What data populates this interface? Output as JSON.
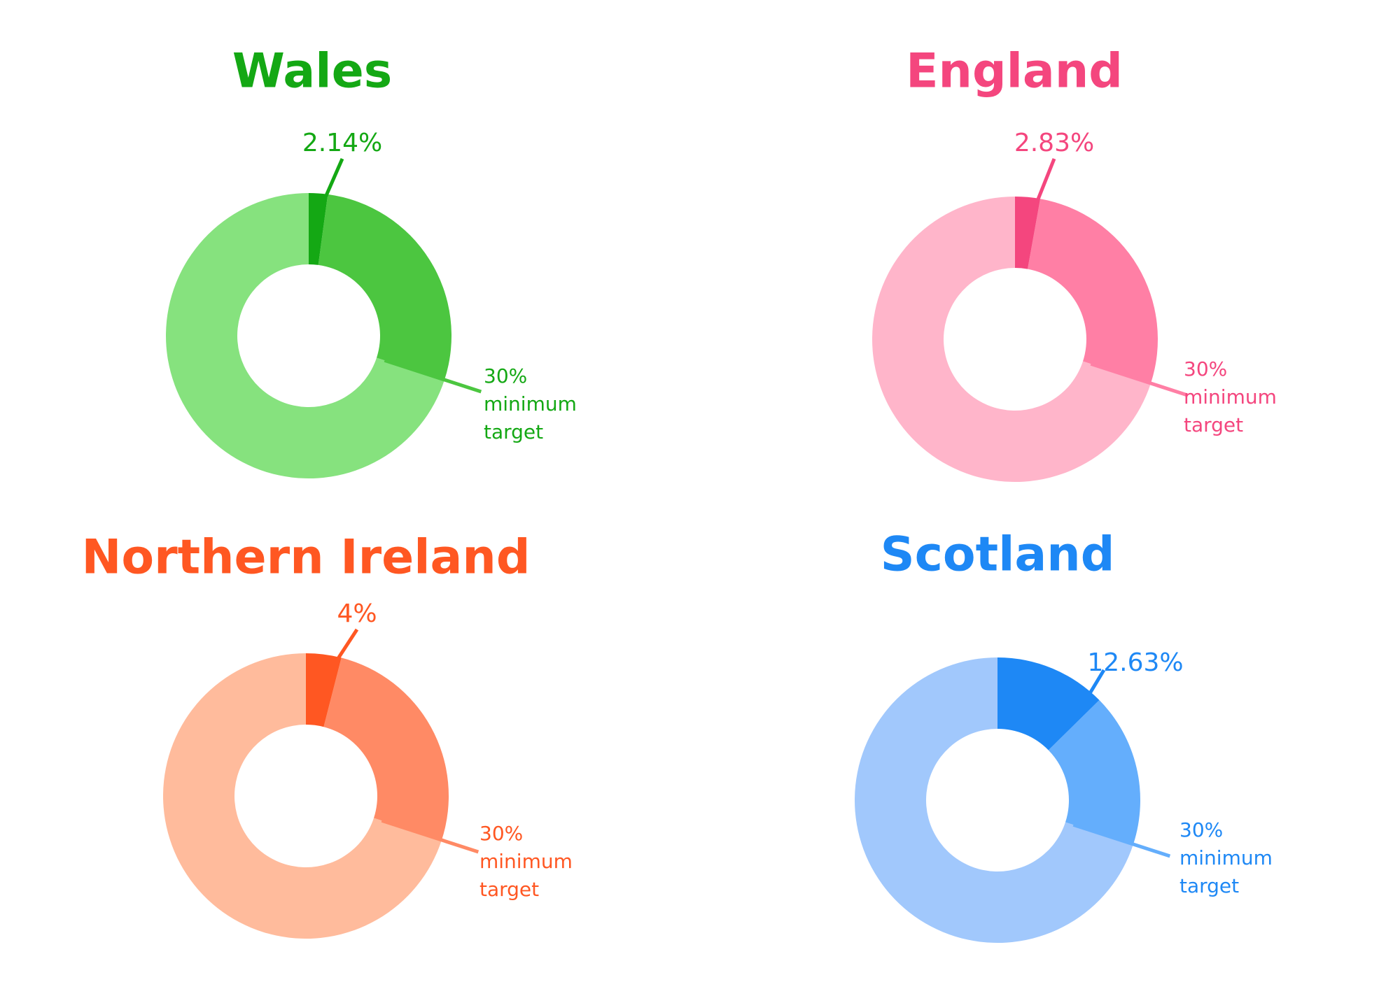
{
  "chart_data": [
    {
      "type": "donut",
      "title": "Wales",
      "values": [
        2.14,
        30
      ],
      "value_labels": [
        "2.14%",
        "30%"
      ],
      "annotation": "minimum target",
      "ylim": [
        0,
        100
      ],
      "colors": [
        "#14a814",
        "#4cc640",
        "#86e27e"
      ]
    },
    {
      "type": "donut",
      "title": "England",
      "values": [
        2.83,
        30
      ],
      "value_labels": [
        "2.83%",
        "30%"
      ],
      "annotation": "minimum target",
      "ylim": [
        0,
        100
      ],
      "colors": [
        "#f4467e",
        "#ff7fa5",
        "#ffb5ca"
      ]
    },
    {
      "type": "donut",
      "title": "Northern Ireland",
      "values": [
        4,
        30
      ],
      "value_labels": [
        "4%",
        "30%"
      ],
      "annotation": "minimum target",
      "ylim": [
        0,
        100
      ],
      "colors": [
        "#ff5722",
        "#ff8a65",
        "#ffbb9c"
      ]
    },
    {
      "type": "donut",
      "title": "Scotland",
      "values": [
        12.63,
        30
      ],
      "value_labels": [
        "12.63%",
        "30%"
      ],
      "annotation": "minimum target",
      "ylim": [
        0,
        100
      ],
      "colors": [
        "#1e88f5",
        "#64aefc",
        "#a1c8fc"
      ]
    }
  ]
}
